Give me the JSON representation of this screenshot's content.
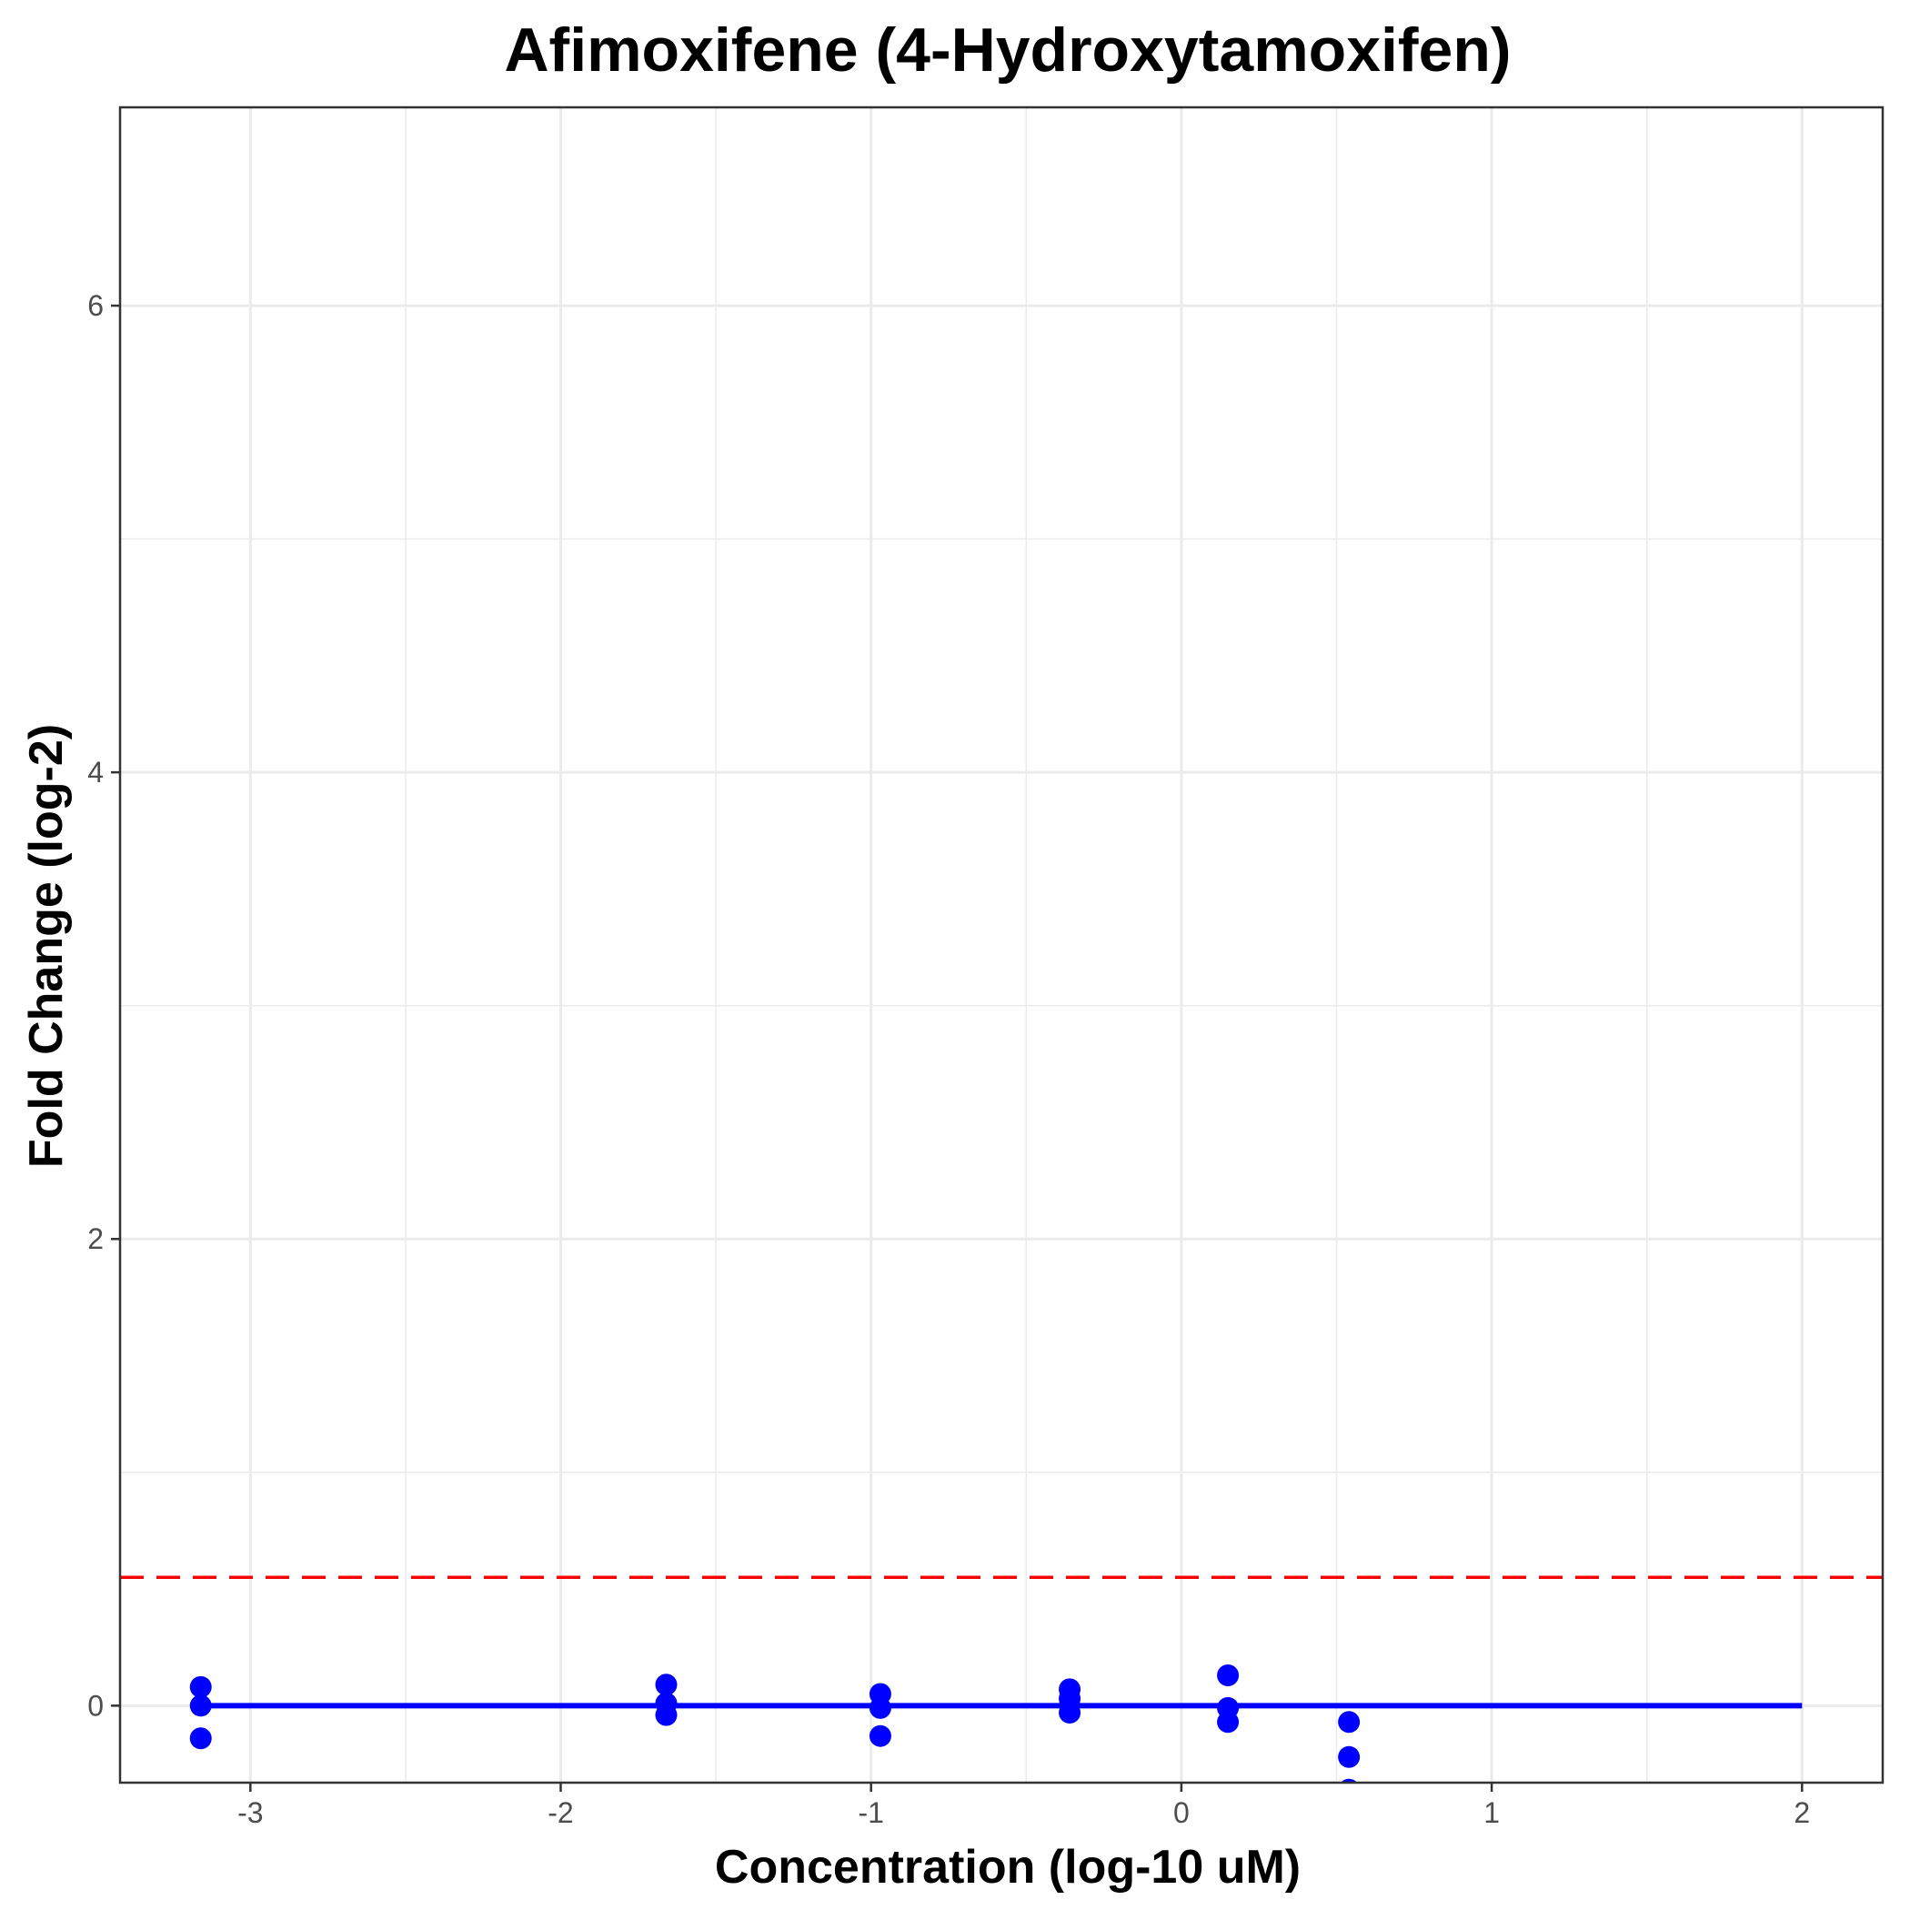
{
  "chart_data": {
    "type": "scatter",
    "title": "Afimoxifene (4-Hydroxytamoxifen)",
    "xlabel": "Concentration (log-10 uM)",
    "ylabel": "Fold Change (log-2)",
    "xlim": [
      -3.42,
      2.26
    ],
    "ylim": [
      -0.33,
      6.85
    ],
    "x_ticks": [
      -3,
      -2,
      -1,
      0,
      1,
      2
    ],
    "y_ticks": [
      0,
      2,
      4,
      6
    ],
    "x_tick_labels": [
      "-3",
      "-2",
      "-1",
      "0",
      "1",
      "2"
    ],
    "y_tick_labels": [
      "0",
      "2",
      "4",
      "6"
    ],
    "grid": true,
    "points": [
      {
        "x": -3.16,
        "y": 0.08
      },
      {
        "x": -3.16,
        "y": 0.0
      },
      {
        "x": -3.16,
        "y": -0.14
      },
      {
        "x": -1.66,
        "y": 0.09
      },
      {
        "x": -1.66,
        "y": 0.01
      },
      {
        "x": -1.66,
        "y": -0.04
      },
      {
        "x": -0.97,
        "y": 0.05
      },
      {
        "x": -0.97,
        "y": -0.01
      },
      {
        "x": -0.97,
        "y": -0.13
      },
      {
        "x": -0.36,
        "y": 0.07
      },
      {
        "x": -0.36,
        "y": 0.03
      },
      {
        "x": -0.36,
        "y": -0.03
      },
      {
        "x": 0.15,
        "y": 0.13
      },
      {
        "x": 0.15,
        "y": -0.01
      },
      {
        "x": 0.15,
        "y": -0.07
      },
      {
        "x": 0.54,
        "y": -0.07
      },
      {
        "x": 0.54,
        "y": -0.22
      },
      {
        "x": 0.54,
        "y": -0.36
      }
    ],
    "fit_line": {
      "x": [
        -3.16,
        2.0
      ],
      "y": [
        0,
        0
      ]
    },
    "threshold_line": {
      "y": 0.55
    },
    "colors": {
      "points": "#0000ff",
      "fit": "#0000ff",
      "threshold": "#ff0000",
      "grid": "#ebebeb",
      "panel_border": "#333333"
    }
  }
}
